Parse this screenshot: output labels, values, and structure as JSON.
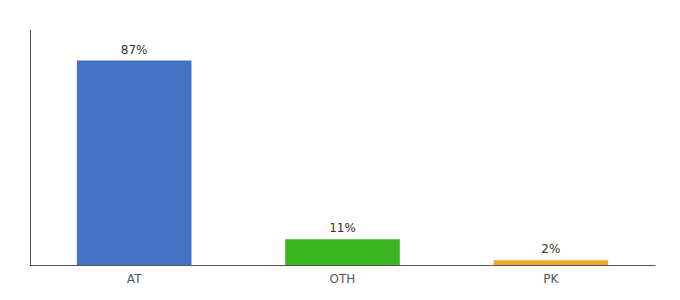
{
  "chart_data": {
    "type": "bar",
    "categories": [
      "AT",
      "OTH",
      "PK"
    ],
    "values": [
      87,
      11,
      2
    ],
    "value_labels": [
      "87%",
      "11%",
      "2%"
    ],
    "colors": [
      "#4472c4",
      "#3cb521",
      "#f5a623"
    ],
    "ylim": [
      0,
      100
    ],
    "grid": false,
    "data_labels": true,
    "tick_labels": "x"
  }
}
